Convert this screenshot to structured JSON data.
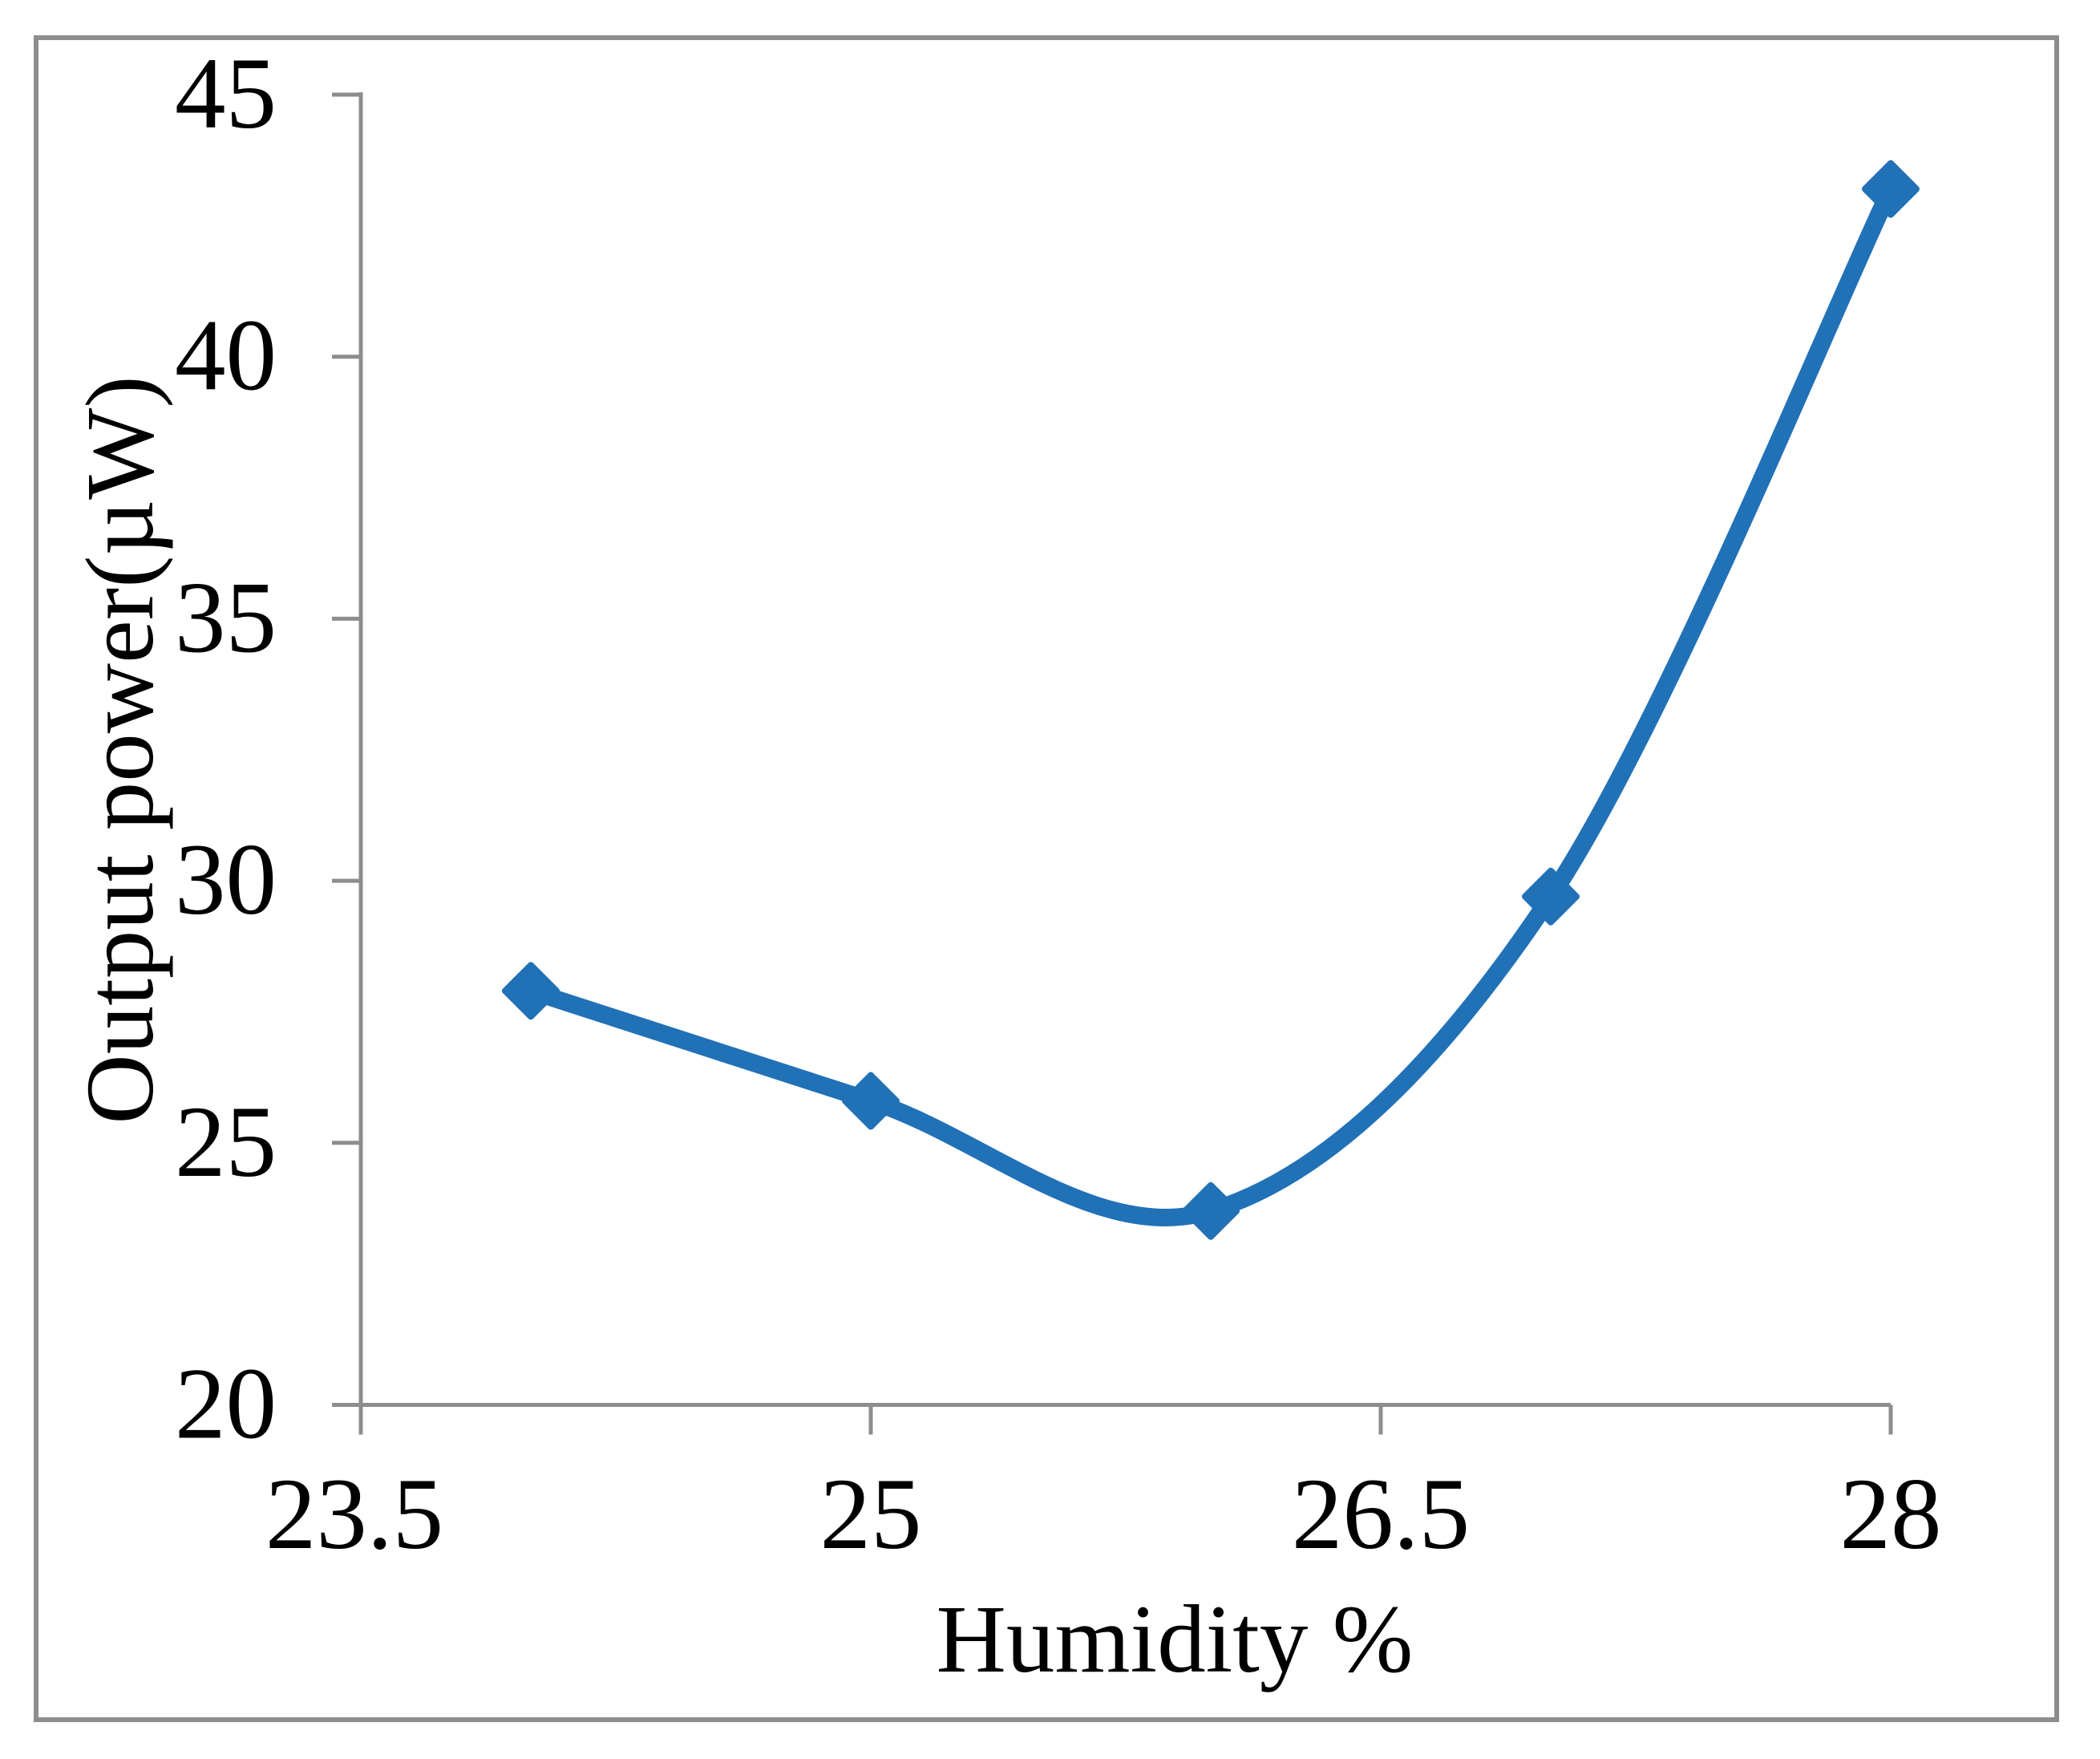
{
  "chart_data": {
    "type": "line",
    "title": "",
    "xlabel": "Humidity %",
    "ylabel": "Output power(µW)",
    "x": [
      24,
      25,
      26,
      27,
      28
    ],
    "y": [
      27.9,
      25.8,
      23.7,
      29.7,
      43.2
    ],
    "series": [
      {
        "name": "Output power",
        "x": [
          24,
          25,
          26,
          27,
          28
        ],
        "values": [
          27.9,
          25.8,
          23.7,
          29.7,
          43.2
        ]
      }
    ],
    "x_tick_labels": [
      "23.5",
      "25",
      "26.5",
      "28"
    ],
    "x_tick_values": [
      23.5,
      25,
      26.5,
      28
    ],
    "y_tick_labels": [
      "20",
      "25",
      "30",
      "35",
      "40",
      "45"
    ],
    "y_tick_values": [
      20,
      25,
      30,
      35,
      40,
      45
    ],
    "xlim": [
      23.5,
      28
    ],
    "ylim": [
      20,
      45
    ],
    "grid": false,
    "legend_position": "none",
    "line_style": "smooth",
    "marker": "diamond",
    "colors": {
      "series": "#2171B7",
      "axis": "#8D8D8D",
      "frame": "#8D8D8D",
      "text": "#000000",
      "background": "#FFFFFF"
    }
  }
}
